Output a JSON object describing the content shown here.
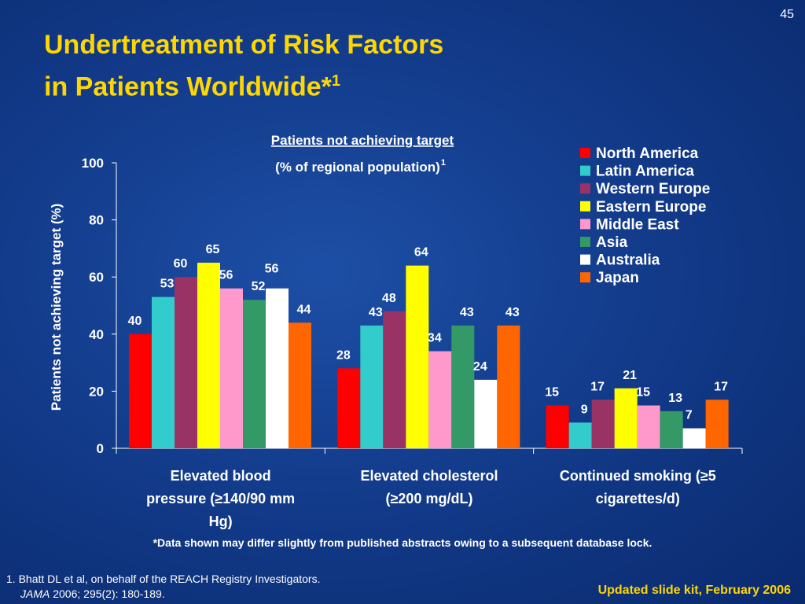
{
  "slide": {
    "number": "45",
    "title_line1": "Undertreatment of Risk Factors",
    "title_line2": "in Patients Worldwide*",
    "title_sup": "1",
    "footnote": "*Data shown may differ slightly from published abstracts owing to a subsequent database lock.",
    "reference_line1": "1. Bhatt DL et al, on behalf of the REACH Registry Investigators.",
    "reference_journal": "JAMA",
    "reference_rest": " 2006; 295(2): 180-189.",
    "updated": "Updated slide kit, February 2006"
  },
  "chart_data": {
    "type": "bar",
    "title": "Patients not achieving target",
    "subtitle": "(% of regional population)",
    "subtitle_sup": "1",
    "ylabel": "Patients not achieving target (%)",
    "xlabel": "",
    "ylim": [
      0,
      100
    ],
    "yticks": [
      0,
      20,
      40,
      60,
      80,
      100
    ],
    "legend_position": "top-right",
    "categories": [
      [
        "Elevated blood",
        "pressure (≥140/90 mm",
        "Hg)"
      ],
      [
        "Elevated cholesterol",
        "(≥200 mg/dL)"
      ],
      [
        "Continued smoking (≥5",
        "cigarettes/d)"
      ]
    ],
    "series": [
      {
        "name": "North America",
        "color": "#ff0000",
        "values": [
          40,
          28,
          15
        ]
      },
      {
        "name": "Latin America",
        "color": "#33cccc",
        "values": [
          53,
          43,
          9
        ]
      },
      {
        "name": "Western Europe",
        "color": "#993366",
        "values": [
          60,
          48,
          17
        ]
      },
      {
        "name": "Eastern Europe",
        "color": "#ffff00",
        "values": [
          65,
          64,
          21
        ]
      },
      {
        "name": "Middle East",
        "color": "#ff99cc",
        "values": [
          56,
          34,
          15
        ]
      },
      {
        "name": "Asia",
        "color": "#339966",
        "values": [
          52,
          43,
          13
        ]
      },
      {
        "name": "Australia",
        "color": "#ffffff",
        "values": [
          56,
          24,
          7
        ]
      },
      {
        "name": "Japan",
        "color": "#ff6600",
        "values": [
          44,
          43,
          17
        ]
      }
    ]
  }
}
